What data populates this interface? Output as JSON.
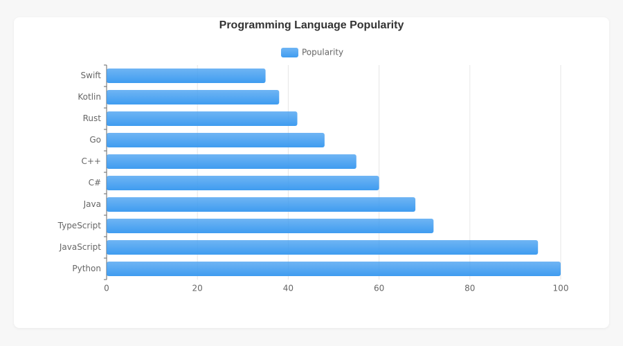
{
  "chart_data": {
    "type": "hbar",
    "title": "Programming Language Popularity",
    "categories": [
      "Python",
      "JavaScript",
      "TypeScript",
      "Java",
      "C#",
      "C++",
      "Go",
      "Rust",
      "Kotlin",
      "Swift"
    ],
    "series": [
      {
        "name": "Popularity",
        "color": "#3f9cf0",
        "values": [
          100,
          95,
          72,
          68,
          60,
          55,
          48,
          42,
          38,
          35
        ]
      }
    ],
    "xlim": [
      0,
      100
    ],
    "xticks": [
      0,
      20,
      40,
      60,
      80,
      100
    ],
    "grid": true,
    "legend": "top"
  }
}
